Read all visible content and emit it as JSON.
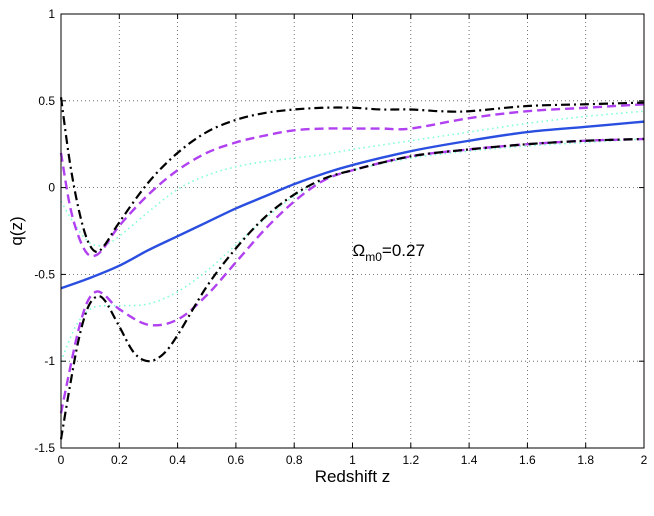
{
  "chart_data": {
    "type": "line",
    "title": "",
    "xlabel": "Redshift z",
    "ylabel": "q(z)",
    "xlim": [
      0,
      2
    ],
    "ylim": [
      -1.5,
      1
    ],
    "xticks": [
      0,
      0.2,
      0.4,
      0.6,
      0.8,
      1,
      1.2,
      1.4,
      1.6,
      1.8,
      2
    ],
    "xtick_labels": [
      "0",
      "0.2",
      "0.4",
      "0.6",
      "0.8",
      "1",
      "1.2",
      "1.4",
      "1.6",
      "1.8",
      "2"
    ],
    "yticks": [
      -1.5,
      -1,
      -0.5,
      0,
      0.5,
      1
    ],
    "ytick_labels": [
      "-1.5",
      "-1",
      "-0.5",
      "0",
      "0.5",
      "1"
    ],
    "grid": true,
    "annotation": {
      "symbol": "Ω",
      "subscript": "m0",
      "text": "=0.27",
      "x": 1.0,
      "y": -0.36
    },
    "series": [
      {
        "color": "#2a4fe0",
        "style": "solid",
        "x": [
          0,
          0.1,
          0.2,
          0.3,
          0.4,
          0.5,
          0.6,
          0.7,
          0.8,
          0.9,
          1.0,
          1.2,
          1.4,
          1.6,
          1.8,
          2.0
        ],
        "y": [
          -0.58,
          -0.52,
          -0.45,
          -0.36,
          -0.28,
          -0.2,
          -0.12,
          -0.05,
          0.02,
          0.08,
          0.13,
          0.21,
          0.27,
          0.32,
          0.35,
          0.38
        ]
      },
      {
        "color": "#7fffd4",
        "style": "dotted",
        "x": [
          0,
          0.05,
          0.1,
          0.15,
          0.2,
          0.3,
          0.4,
          0.5,
          0.6,
          0.7,
          0.8,
          0.9,
          1.0,
          1.2,
          1.4,
          1.6,
          1.8,
          2.0
        ],
        "y": [
          -0.08,
          -0.22,
          -0.32,
          -0.33,
          -0.28,
          -0.14,
          -0.01,
          0.07,
          0.12,
          0.15,
          0.17,
          0.19,
          0.22,
          0.27,
          0.32,
          0.37,
          0.41,
          0.44
        ]
      },
      {
        "color": "#7fffd4",
        "style": "dotted",
        "x": [
          0,
          0.05,
          0.1,
          0.15,
          0.2,
          0.3,
          0.4,
          0.5,
          0.6,
          0.7,
          0.8,
          0.9,
          1.0,
          1.2,
          1.4,
          1.6,
          1.8,
          2.0
        ],
        "y": [
          -1.0,
          -0.8,
          -0.7,
          -0.68,
          -0.68,
          -0.67,
          -0.6,
          -0.48,
          -0.33,
          -0.18,
          -0.05,
          0.04,
          0.1,
          0.17,
          0.21,
          0.24,
          0.26,
          0.28
        ]
      },
      {
        "color": "#b040f0",
        "style": "dashed",
        "x": [
          0,
          0.03,
          0.06,
          0.09,
          0.12,
          0.15,
          0.2,
          0.3,
          0.4,
          0.5,
          0.6,
          0.7,
          0.8,
          0.9,
          1.0,
          1.1,
          1.2,
          1.4,
          1.6,
          1.8,
          2.0
        ],
        "y": [
          0.2,
          -0.1,
          -0.28,
          -0.38,
          -0.39,
          -0.34,
          -0.22,
          -0.04,
          0.1,
          0.2,
          0.26,
          0.3,
          0.33,
          0.34,
          0.34,
          0.34,
          0.34,
          0.4,
          0.44,
          0.46,
          0.48
        ]
      },
      {
        "color": "#b040f0",
        "style": "dashed",
        "x": [
          0,
          0.03,
          0.06,
          0.09,
          0.12,
          0.15,
          0.2,
          0.3,
          0.4,
          0.5,
          0.6,
          0.7,
          0.8,
          0.9,
          1.0,
          1.2,
          1.4,
          1.6,
          1.8,
          2.0
        ],
        "y": [
          -1.3,
          -1.05,
          -0.82,
          -0.66,
          -0.6,
          -0.62,
          -0.7,
          -0.79,
          -0.76,
          -0.62,
          -0.43,
          -0.24,
          -0.08,
          0.04,
          0.1,
          0.18,
          0.22,
          0.25,
          0.27,
          0.28
        ]
      },
      {
        "color": "#000000",
        "style": "dashdot",
        "x": [
          0,
          0.03,
          0.06,
          0.09,
          0.12,
          0.15,
          0.2,
          0.3,
          0.4,
          0.5,
          0.6,
          0.7,
          0.8,
          0.9,
          1.0,
          1.1,
          1.2,
          1.3,
          1.4,
          1.6,
          1.8,
          2.0
        ],
        "y": [
          0.52,
          0.15,
          -0.12,
          -0.3,
          -0.37,
          -0.33,
          -0.2,
          0.03,
          0.2,
          0.32,
          0.39,
          0.43,
          0.45,
          0.46,
          0.46,
          0.45,
          0.45,
          0.44,
          0.44,
          0.47,
          0.48,
          0.49
        ]
      },
      {
        "color": "#000000",
        "style": "dashdot",
        "x": [
          0,
          0.03,
          0.06,
          0.09,
          0.12,
          0.15,
          0.2,
          0.25,
          0.3,
          0.35,
          0.4,
          0.5,
          0.6,
          0.7,
          0.8,
          0.9,
          1.0,
          1.2,
          1.4,
          1.6,
          1.8,
          2.0
        ],
        "y": [
          -1.45,
          -1.15,
          -0.88,
          -0.7,
          -0.63,
          -0.65,
          -0.8,
          -0.95,
          -1.0,
          -0.96,
          -0.85,
          -0.57,
          -0.35,
          -0.17,
          -0.04,
          0.05,
          0.1,
          0.18,
          0.22,
          0.25,
          0.27,
          0.28
        ]
      }
    ]
  }
}
